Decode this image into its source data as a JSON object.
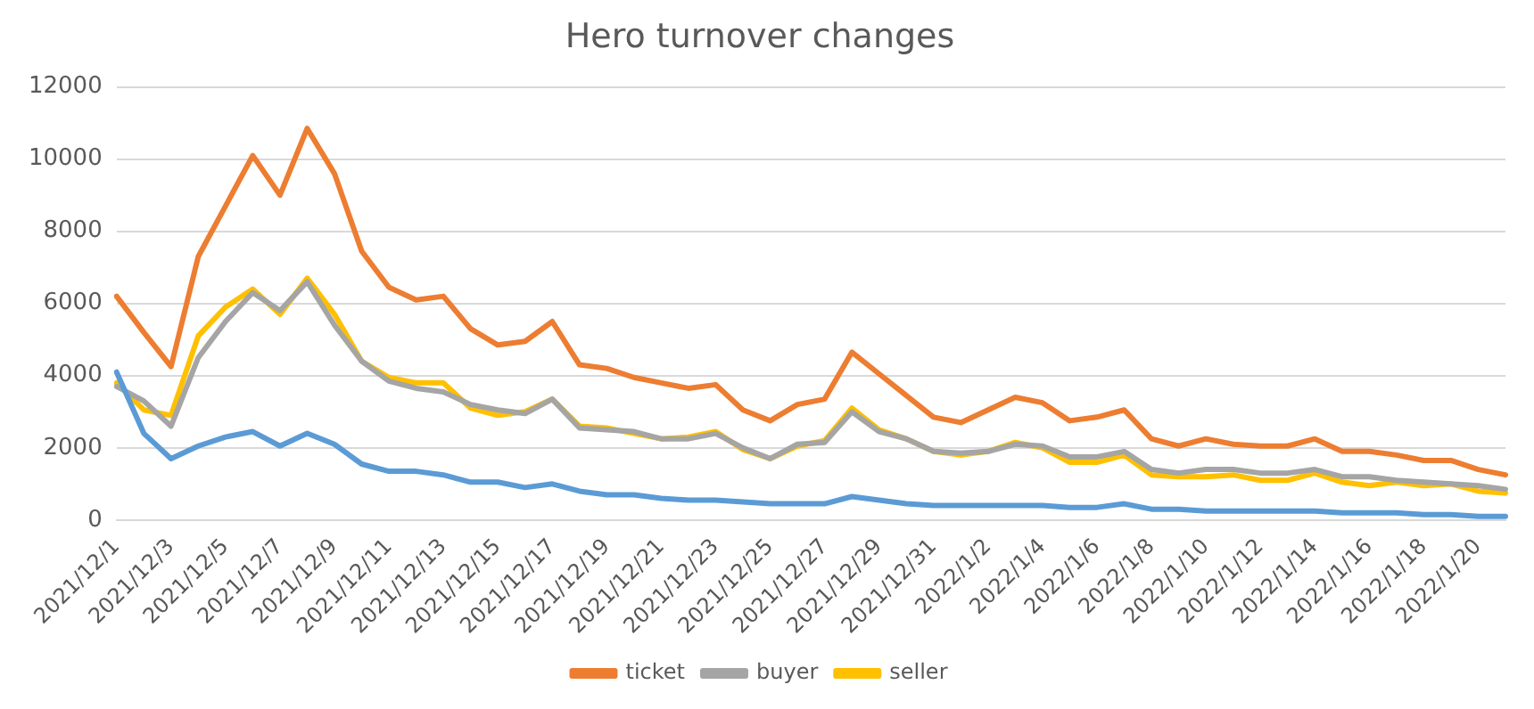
{
  "chart_data": {
    "type": "line",
    "title": "Hero turnover changes",
    "categories": [
      "2021/12/1",
      null,
      "2021/12/3",
      null,
      "2021/12/5",
      null,
      "2021/12/7",
      null,
      "2021/12/9",
      null,
      "2021/12/11",
      null,
      "2021/12/13",
      null,
      "2021/12/15",
      null,
      "2021/12/17",
      null,
      "2021/12/19",
      null,
      "2021/12/21",
      null,
      "2021/12/23",
      null,
      "2021/12/25",
      null,
      "2021/12/27",
      null,
      "2021/12/29",
      null,
      "2021/12/31",
      null,
      "2022/1/2",
      null,
      "2022/1/4",
      null,
      "2022/1/6",
      null,
      "2022/1/8",
      null,
      "2022/1/10",
      null,
      "2022/1/12",
      null,
      "2022/1/14",
      null,
      "2022/1/16",
      null,
      "2022/1/18",
      null,
      "2022/1/20",
      null
    ],
    "series": [
      {
        "color": "#5b9bd5",
        "values": [
          4100,
          2400,
          1700,
          2050,
          2300,
          2450,
          2050,
          2400,
          2100,
          1550,
          1350,
          1350,
          1250,
          1050,
          1050,
          900,
          1000,
          800,
          700,
          700,
          600,
          550,
          550,
          500,
          450,
          450,
          450,
          650,
          550,
          450,
          400,
          400,
          400,
          400,
          400,
          350,
          350,
          450,
          300,
          300,
          250,
          250,
          250,
          250,
          250,
          200,
          200,
          200,
          150,
          150,
          100,
          100
        ]
      },
      {
        "name": "ticket",
        "color": "#ed7d31",
        "values": [
          6200,
          5200,
          4250,
          7300,
          8700,
          10100,
          9000,
          10850,
          9600,
          7450,
          6450,
          6100,
          6200,
          5300,
          4850,
          4950,
          5500,
          4300,
          4200,
          3950,
          3800,
          3650,
          3750,
          3050,
          2750,
          3200,
          3350,
          4650,
          4050,
          3450,
          2850,
          2700,
          3050,
          3400,
          3250,
          2750,
          2850,
          3050,
          2250,
          2050,
          2250,
          2100,
          2050,
          2050,
          2250,
          1900,
          1900,
          1800,
          1650,
          1650,
          1400,
          1250
        ]
      },
      {
        "name": "buyer",
        "color": "#a5a5a5",
        "values": [
          3700,
          3300,
          2600,
          4500,
          5500,
          6300,
          5800,
          6600,
          5400,
          4400,
          3850,
          3650,
          3550,
          3200,
          3050,
          2950,
          3350,
          2550,
          2500,
          2450,
          2250,
          2250,
          2400,
          2000,
          1700,
          2100,
          2150,
          3000,
          2450,
          2250,
          1900,
          1850,
          1900,
          2100,
          2050,
          1750,
          1750,
          1900,
          1400,
          1300,
          1400,
          1400,
          1300,
          1300,
          1400,
          1200,
          1200,
          1100,
          1050,
          1000,
          950,
          850
        ]
      },
      {
        "name": "seller",
        "color": "#ffc000",
        "values": [
          3800,
          3050,
          2900,
          5100,
          5900,
          6400,
          5700,
          6700,
          5700,
          4400,
          3950,
          3800,
          3800,
          3100,
          2900,
          3000,
          3350,
          2600,
          2550,
          2400,
          2250,
          2300,
          2450,
          1950,
          1700,
          2050,
          2200,
          3100,
          2500,
          2250,
          1900,
          1800,
          1900,
          2150,
          2000,
          1600,
          1600,
          1800,
          1250,
          1200,
          1200,
          1250,
          1100,
          1100,
          1300,
          1050,
          950,
          1050,
          950,
          1000,
          800,
          750
        ]
      }
    ],
    "ylim": [
      0,
      12000
    ],
    "yticks": [
      0,
      2000,
      4000,
      6000,
      8000,
      10000,
      12000
    ],
    "grid": "y",
    "legend": "bottom",
    "marker": "none",
    "line_style": "solid"
  }
}
